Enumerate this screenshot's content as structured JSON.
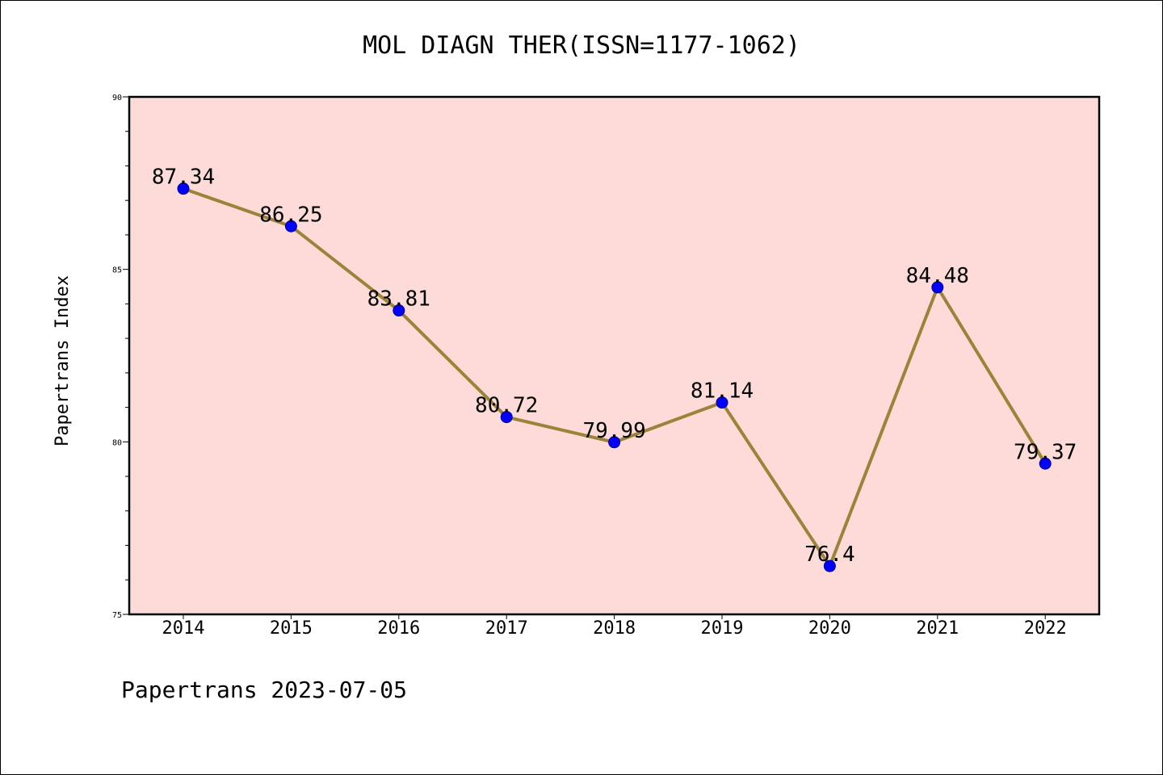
{
  "chart_data": {
    "type": "line",
    "title": "MOL DIAGN THER(ISSN=1177-1062)",
    "xlabel": "",
    "ylabel": "Papertrans Index",
    "categories": [
      "2014",
      "2015",
      "2016",
      "2017",
      "2018",
      "2019",
      "2020",
      "2021",
      "2022"
    ],
    "series": [
      {
        "values": [
          87.34,
          86.25,
          83.81,
          80.72,
          79.99,
          81.14,
          76.4,
          84.48,
          79.37
        ],
        "labels": [
          "87.34",
          "86.25",
          "83.81",
          "80.72",
          "79.99",
          "81.14",
          "76.4",
          "84.48",
          "79.37"
        ]
      }
    ],
    "ylim": [
      75,
      90
    ],
    "yticks": [
      "75",
      "80",
      "85",
      "90"
    ],
    "grid": false,
    "legend": "none"
  },
  "footer": "Papertrans 2023-07-05",
  "colors": {
    "plot_background": "#fddbd8",
    "line": "#9b8339",
    "marker": "#0000ff",
    "axis": "#000000"
  }
}
